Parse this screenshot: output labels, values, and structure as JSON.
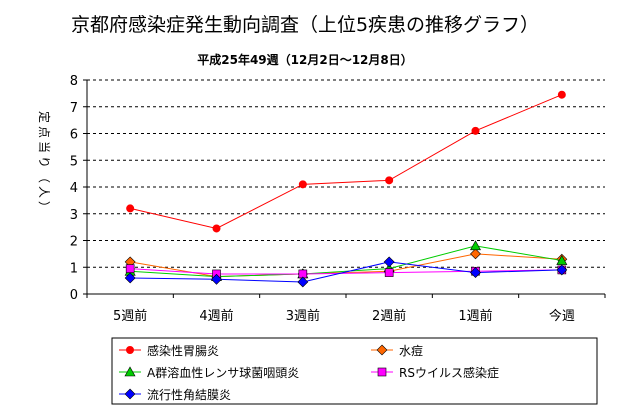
{
  "chart_data": {
    "type": "line",
    "title": "京都府感染症発生動向調査（上位5疾患の推移グラフ）",
    "subtitle": "平成25年49週（12月2日～12月8日）",
    "ylabel_chars": [
      "定",
      "点",
      "当",
      "り",
      "（",
      "人",
      "）"
    ],
    "categories": [
      "5週前",
      "4週前",
      "3週前",
      "2週前",
      "1週前",
      "今週"
    ],
    "ylim": [
      0,
      8
    ],
    "yticks": [
      "0",
      "1",
      "2",
      "3",
      "4",
      "5",
      "6",
      "7",
      "8"
    ],
    "grid": "dashed-horizontal",
    "legend_position": "bottom",
    "series": [
      {
        "name": "感染性胃腸炎",
        "color": "#ff0000",
        "marker": "circle",
        "values": [
          3.2,
          2.45,
          4.1,
          4.25,
          6.1,
          7.45
        ]
      },
      {
        "name": "水痘",
        "color": "#ff6600",
        "marker": "diamond",
        "values": [
          1.2,
          0.65,
          0.75,
          0.85,
          1.5,
          1.3
        ]
      },
      {
        "name": "A群溶血性レンサ球菌咽頭炎",
        "color": "#00cc00",
        "marker": "triangle",
        "values": [
          0.85,
          0.65,
          0.75,
          0.95,
          1.8,
          1.25
        ]
      },
      {
        "name": "RSウイルス感染症",
        "color": "#ff00ff",
        "marker": "square",
        "values": [
          0.95,
          0.75,
          0.75,
          0.8,
          0.85,
          0.9
        ]
      },
      {
        "name": "流行性角結膜炎",
        "color": "#0000ff",
        "marker": "diamond",
        "values": [
          0.6,
          0.55,
          0.45,
          1.2,
          0.8,
          0.9
        ]
      }
    ]
  }
}
